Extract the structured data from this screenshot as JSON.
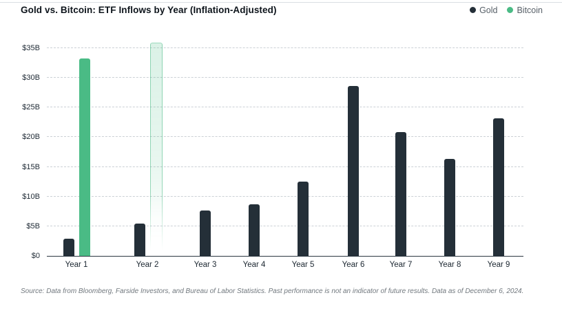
{
  "header": {
    "title": "Gold vs. Bitcoin: ETF Inflows by Year (Inflation-Adjusted)",
    "legend": [
      {
        "label": "Gold",
        "color": "#242f38"
      },
      {
        "label": "Bitcoin",
        "color": "#4abb85"
      }
    ]
  },
  "chart_data": {
    "type": "bar",
    "title": "Gold vs. Bitcoin: ETF Inflows by Year (Inflation-Adjusted)",
    "categories": [
      "Year 1",
      "Year 2",
      "Year 3",
      "Year 4",
      "Year 5",
      "Year 6",
      "Year 7",
      "Year 8",
      "Year 9"
    ],
    "series": [
      {
        "name": "Gold",
        "color": "#242f38",
        "values": [
          2.9,
          5.4,
          7.6,
          8.7,
          12.5,
          28.6,
          20.9,
          16.3,
          23.2
        ]
      },
      {
        "name": "Bitcoin",
        "color": "#4abb85",
        "values": [
          33.3,
          35.8,
          null,
          null,
          null,
          null,
          null,
          null,
          null
        ],
        "styles": [
          "actual",
          "projected",
          null,
          null,
          null,
          null,
          null,
          null,
          null
        ]
      }
    ],
    "xlabel": "",
    "ylabel": "",
    "ytick_labels": [
      "$0",
      "$5B",
      "$10B",
      "$15B",
      "$20B",
      "$25B",
      "$30B",
      "$35B"
    ],
    "ylim": [
      0,
      35
    ],
    "grid": "horizontal-dashed",
    "legend_position": "top-right"
  },
  "footer": {
    "source": "Source: Data from Bloomberg, Farside Investors, and Bureau of Labor Statistics. Past performance is not an indicator of future results. Data as of December 6, 2024."
  }
}
